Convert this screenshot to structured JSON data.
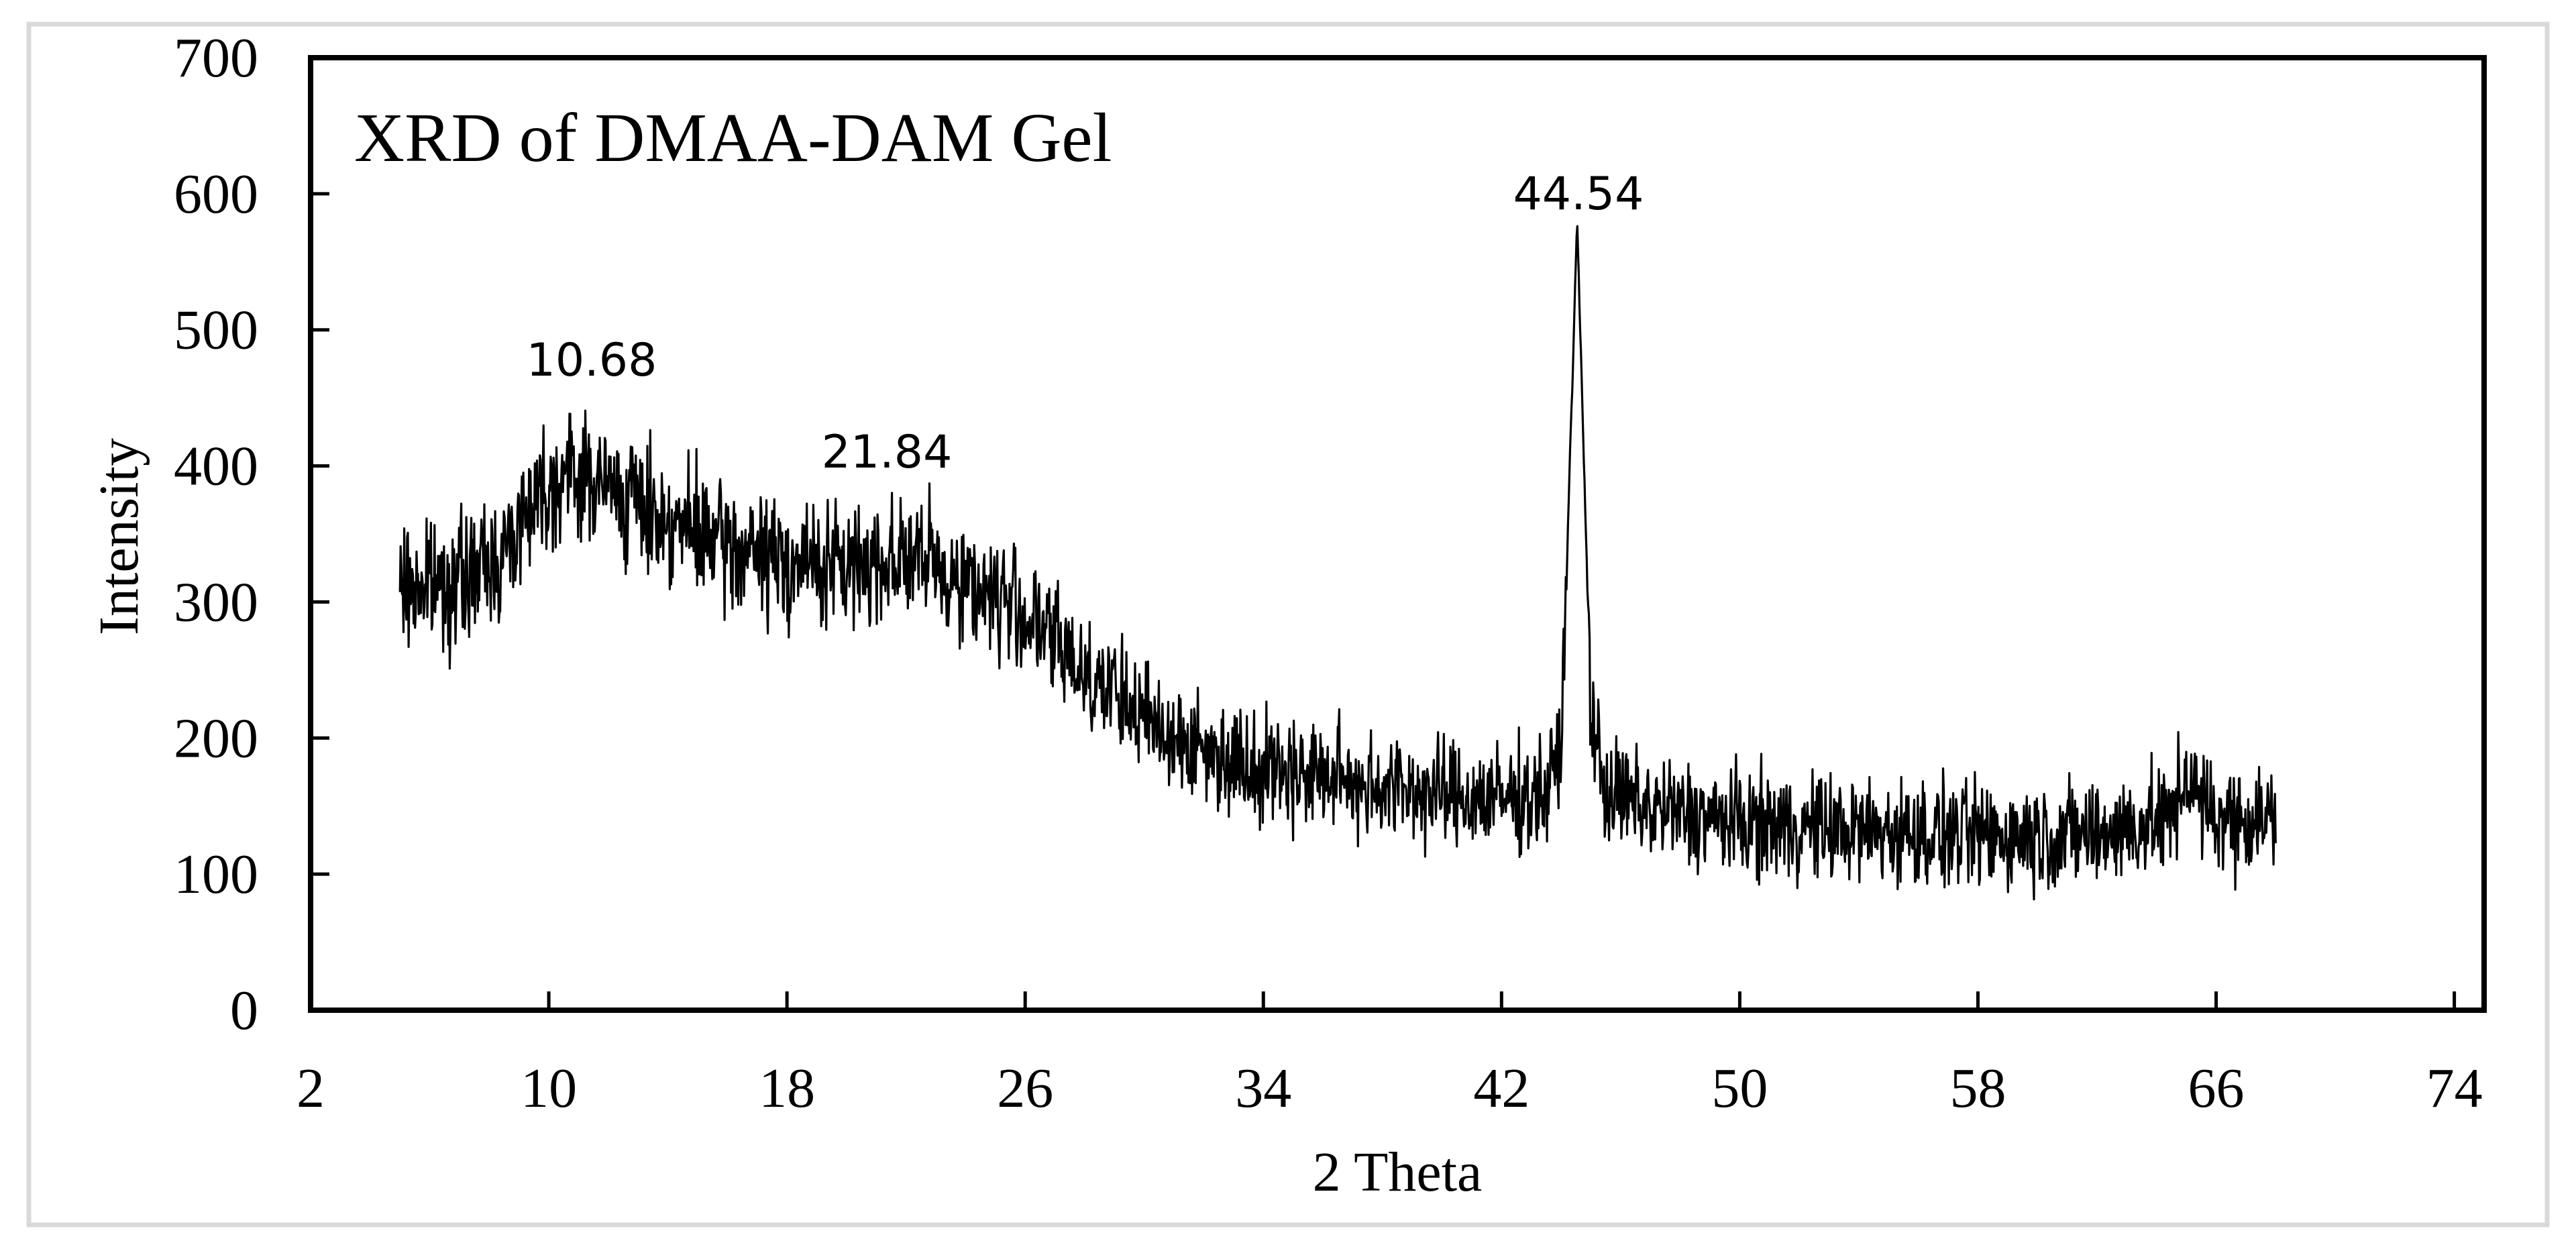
{
  "chart_data": {
    "type": "line",
    "title": "XRD of DMAA-DAM Gel",
    "xlabel": "2 Theta",
    "ylabel": "Intensity",
    "xlim": [
      2,
      75
    ],
    "ylim": [
      0,
      700
    ],
    "x_ticks": [
      2,
      10,
      18,
      26,
      34,
      42,
      50,
      58,
      66,
      74
    ],
    "y_ticks": [
      0,
      100,
      200,
      300,
      400,
      500,
      600,
      700
    ],
    "grid": false,
    "legend": null,
    "series": [
      {
        "name": "DMAA-DAM Gel",
        "color": "#000000",
        "description": "Noisy XRD pattern; smooth envelope listed, raw trace has about ±30 noise",
        "x": [
          5,
          7,
          8.5,
          9.5,
          10.68,
          12,
          14,
          16,
          18,
          20,
          21.84,
          23,
          25,
          26,
          28,
          30,
          32,
          34,
          36,
          38,
          40,
          42,
          43.5,
          44,
          44.54,
          45,
          45.5,
          47,
          50,
          54,
          58,
          62,
          64.5,
          65,
          65.5,
          66,
          68
        ],
        "y": [
          310,
          315,
          335,
          380,
          395,
          385,
          360,
          340,
          330,
          325,
          335,
          325,
          305,
          290,
          250,
          215,
          190,
          180,
          172,
          165,
          158,
          155,
          160,
          190,
          580,
          220,
          160,
          148,
          138,
          132,
          128,
          130,
          140,
          175,
          150,
          142,
          140
        ]
      }
    ],
    "annotations": [
      {
        "text": "10.68",
        "x": 10.68,
        "y": 450
      },
      {
        "text": "21.84",
        "x": 21.84,
        "y": 390
      },
      {
        "text": "44.54",
        "x": 44.54,
        "y": 580
      }
    ],
    "noise": {
      "amplitude": 30,
      "points": 2600,
      "seed": 7
    }
  }
}
